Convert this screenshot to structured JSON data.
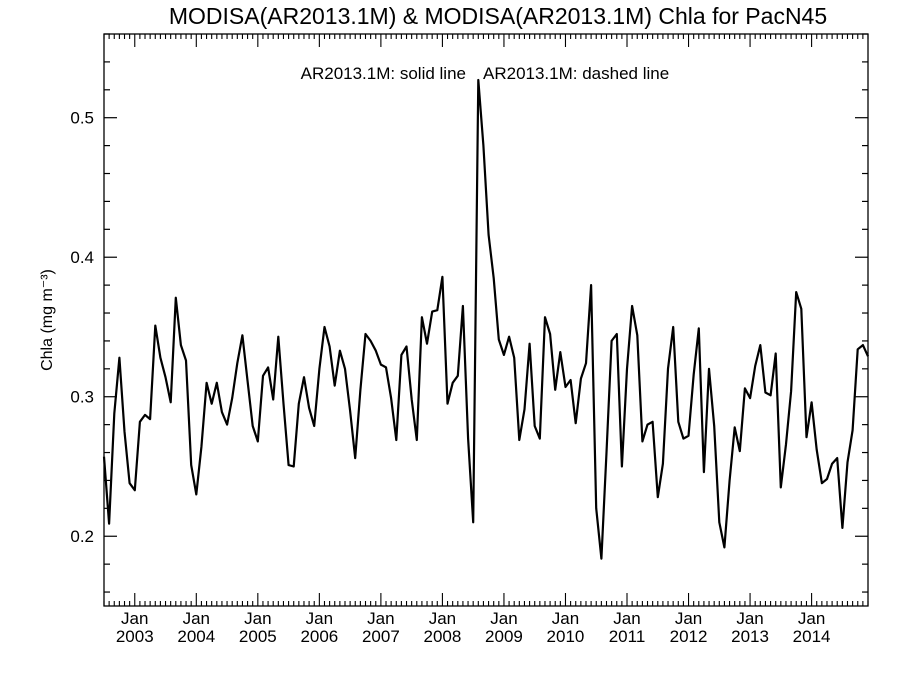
{
  "chart_data": {
    "type": "line",
    "title": "MODISA(AR2013.1M) & MODISA(AR2013.1M)  Chla for PacN45",
    "legend_text": {
      "solid": "AR2013.1M: solid line",
      "dashed": "AR2013.1M: dashed line"
    },
    "xlabel": "",
    "ylabel": "Chla (mg m⁻³)",
    "xlim": [
      "2002-07",
      "2014-12"
    ],
    "ylim": [
      0.15,
      0.56
    ],
    "yticks": [
      "0.2",
      "0.3",
      "0.4",
      "0.5"
    ],
    "xticks": [
      {
        "month": "Jan",
        "year": "2003",
        "date": "2003-01"
      },
      {
        "month": "Jan",
        "year": "2004",
        "date": "2004-01"
      },
      {
        "month": "Jan",
        "year": "2005",
        "date": "2005-01"
      },
      {
        "month": "Jan",
        "year": "2006",
        "date": "2006-01"
      },
      {
        "month": "Jan",
        "year": "2007",
        "date": "2007-01"
      },
      {
        "month": "Jan",
        "year": "2008",
        "date": "2008-01"
      },
      {
        "month": "Jan",
        "year": "2009",
        "date": "2009-01"
      },
      {
        "month": "Jan",
        "year": "2010",
        "date": "2010-01"
      },
      {
        "month": "Jan",
        "year": "2011",
        "date": "2011-01"
      },
      {
        "month": "Jan",
        "year": "2012",
        "date": "2012-01"
      },
      {
        "month": "Jan",
        "year": "2013",
        "date": "2013-01"
      },
      {
        "month": "Jan",
        "year": "2014",
        "date": "2014-01"
      }
    ],
    "grid": false,
    "series": [
      {
        "name": "AR2013.1M",
        "style": "solid",
        "color": "#000000",
        "start": "2002-07",
        "values": [
          0.257,
          0.209,
          0.288,
          0.328,
          0.275,
          0.238,
          0.233,
          0.282,
          0.287,
          0.284,
          0.351,
          0.328,
          0.314,
          0.296,
          0.371,
          0.337,
          0.326,
          0.251,
          0.23,
          0.264,
          0.31,
          0.295,
          0.31,
          0.289,
          0.28,
          0.299,
          0.324,
          0.344,
          0.311,
          0.279,
          0.268,
          0.315,
          0.321,
          0.298,
          0.343,
          0.295,
          0.251,
          0.25,
          0.295,
          0.314,
          0.292,
          0.279,
          0.32,
          0.35,
          0.336,
          0.308,
          0.333,
          0.32,
          0.29,
          0.256,
          0.305,
          0.345,
          0.34,
          0.333,
          0.323,
          0.321,
          0.299,
          0.269,
          0.33,
          0.336,
          0.298,
          0.269,
          0.357,
          0.338,
          0.361,
          0.362,
          0.386,
          0.295,
          0.31,
          0.315,
          0.365,
          0.27,
          0.21,
          0.527,
          0.48,
          0.416,
          0.385,
          0.341,
          0.33,
          0.343,
          0.328,
          0.269,
          0.291,
          0.338,
          0.279,
          0.27,
          0.357,
          0.345,
          0.305,
          0.332,
          0.307,
          0.312,
          0.281,
          0.313,
          0.324,
          0.38,
          0.22,
          0.184,
          0.26,
          0.34,
          0.345,
          0.25,
          0.32,
          0.365,
          0.344,
          0.268,
          0.28,
          0.282,
          0.228,
          0.252,
          0.32,
          0.35,
          0.282,
          0.27,
          0.272,
          0.316,
          0.349,
          0.246,
          0.32,
          0.279,
          0.21,
          0.192,
          0.24,
          0.278,
          0.261,
          0.306,
          0.299,
          0.322,
          0.337,
          0.303,
          0.301,
          0.331,
          0.235,
          0.266,
          0.304,
          0.375,
          0.363,
          0.271,
          0.296,
          0.262,
          0.238,
          0.241,
          0.252,
          0.256,
          0.206,
          0.253,
          0.276,
          0.334,
          0.337,
          0.329
        ]
      }
    ]
  }
}
